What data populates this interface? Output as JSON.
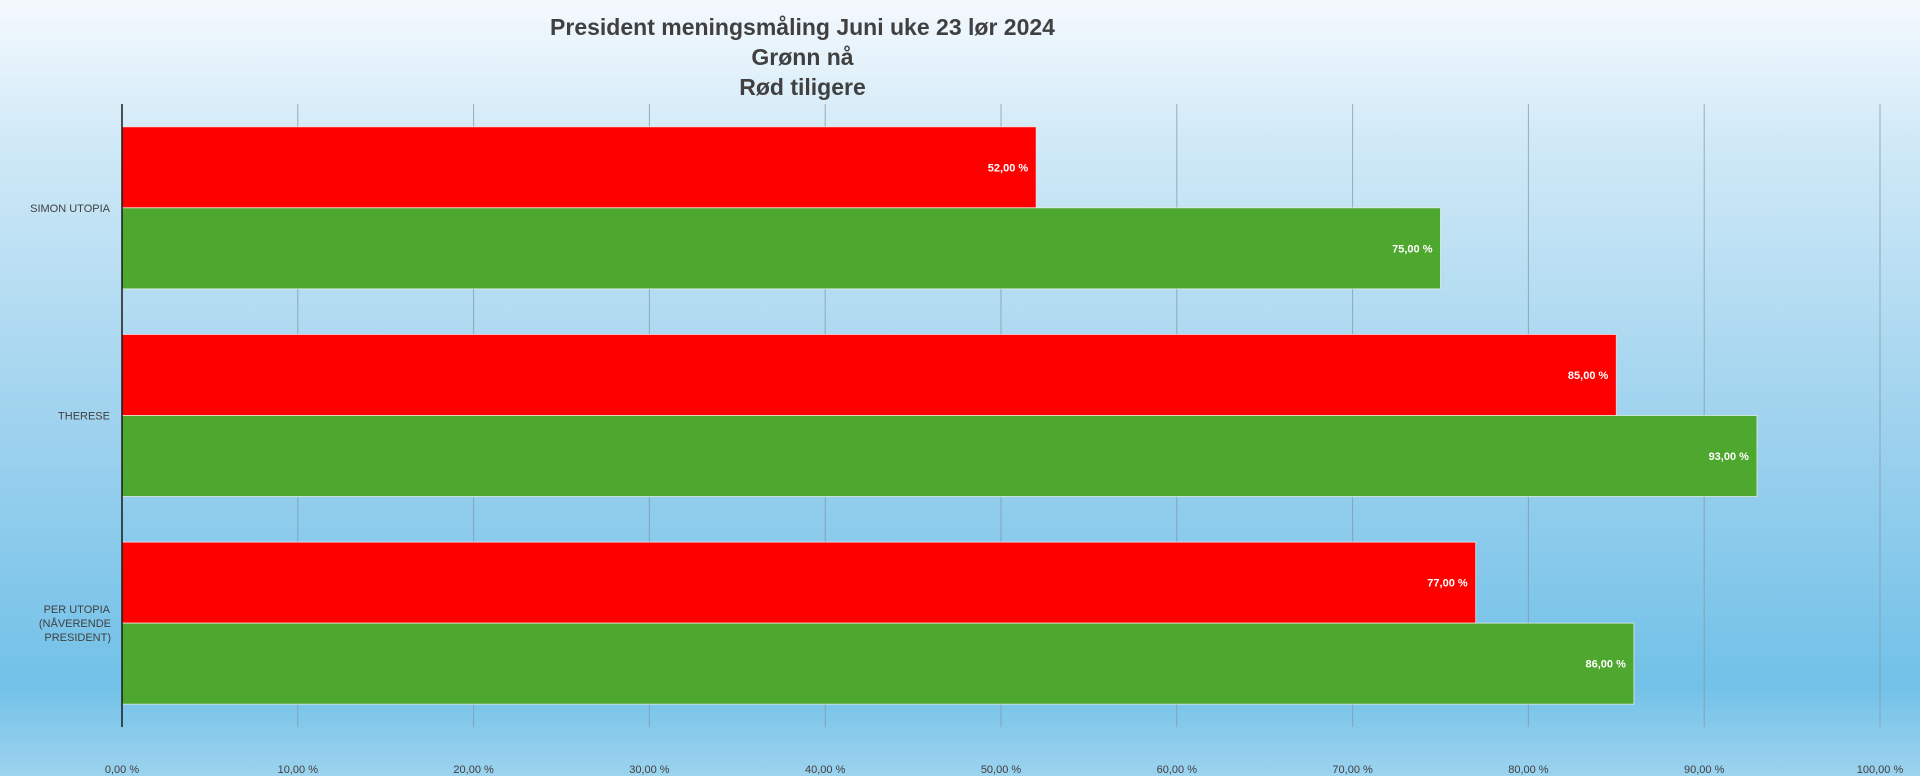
{
  "chart_data": {
    "type": "bar",
    "orientation": "horizontal",
    "title_lines": [
      "President meningsmåling Juni uke 23 lør 2024",
      "Grønn nå",
      "Rød tiligere"
    ],
    "categories": [
      [
        "SIMON UTOPIA"
      ],
      [
        "THERESE"
      ],
      [
        "PER UTOPIA",
        "(NÅVERENDE",
        "PRESIDENT)"
      ]
    ],
    "series": [
      {
        "color": "#ff0000",
        "values": [
          52,
          85,
          77
        ],
        "labels": [
          "52,00 %",
          "85,00 %",
          "77,00 %"
        ]
      },
      {
        "color": "#4ea72e",
        "values": [
          75,
          93,
          86
        ],
        "labels": [
          "75,00 %",
          "93,00 %",
          "86,00 %"
        ]
      }
    ],
    "xlim": [
      0,
      100
    ],
    "x_ticks": [
      0,
      10,
      20,
      30,
      40,
      50,
      60,
      70,
      80,
      90,
      100
    ],
    "x_tick_labels": [
      "0,00 %",
      "10,00 %",
      "20,00 %",
      "30,00 %",
      "40,00 %",
      "50,00 %",
      "60,00 %",
      "70,00 %",
      "80,00 %",
      "90,00 %",
      "100,00 %"
    ],
    "grid": true,
    "legend": "none",
    "xlabel": "",
    "ylabel": ""
  }
}
